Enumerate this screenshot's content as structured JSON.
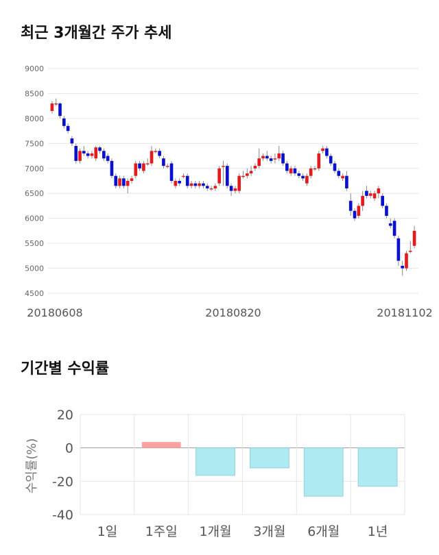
{
  "sections": {
    "price_title": "최근 3개월간 주가 추세",
    "return_title": "기간별 수익률"
  },
  "chart_data": [
    {
      "type": "candlestick",
      "title": "최근 3개월간 주가 추세",
      "ylim": [
        4500,
        9000
      ],
      "y_ticks": [
        9000,
        8500,
        8000,
        7500,
        7000,
        6500,
        6000,
        5500,
        5000,
        4500
      ],
      "x_tick_labels": [
        "20180608",
        "20180820",
        "20181102"
      ],
      "colors": {
        "up": "#e41a1c",
        "down": "#0a10d0",
        "grid": "#e6e6e6"
      },
      "grid": true,
      "candles": [
        [
          8150,
          8300,
          8350,
          8100
        ],
        [
          8300,
          8300,
          8400,
          8250
        ],
        [
          8300,
          8050,
          8320,
          8000
        ],
        [
          8000,
          7850,
          8050,
          7800
        ],
        [
          7850,
          7750,
          7900,
          7700
        ],
        [
          7600,
          7500,
          7650,
          7450
        ],
        [
          7450,
          7150,
          7500,
          7100
        ],
        [
          7150,
          7350,
          7400,
          7100
        ],
        [
          7350,
          7300,
          7450,
          7250
        ],
        [
          7300,
          7250,
          7350,
          7200
        ],
        [
          7250,
          7300,
          7350,
          7200
        ],
        [
          7200,
          7420,
          7450,
          7150
        ],
        [
          7420,
          7350,
          7450,
          7300
        ],
        [
          7350,
          7200,
          7400,
          7150
        ],
        [
          7250,
          7150,
          7300,
          7100
        ],
        [
          7150,
          6850,
          7200,
          6800
        ],
        [
          6850,
          6650,
          6900,
          6600
        ],
        [
          6650,
          6800,
          6850,
          6600
        ],
        [
          6800,
          6650,
          6850,
          6600
        ],
        [
          6650,
          6750,
          6800,
          6500
        ],
        [
          6750,
          6800,
          6850,
          6700
        ],
        [
          6850,
          7100,
          7150,
          6800
        ],
        [
          7100,
          7000,
          7150,
          6950
        ],
        [
          6950,
          7100,
          7150,
          6900
        ],
        [
          7100,
          7100,
          7200,
          7050
        ],
        [
          7100,
          7350,
          7450,
          7050
        ],
        [
          7350,
          7350,
          7400,
          7300
        ],
        [
          7350,
          7250,
          7400,
          7200
        ],
        [
          7200,
          7050,
          7250,
          7000
        ],
        [
          7050,
          7050,
          7100,
          7000
        ],
        [
          7100,
          6750,
          7150,
          6700
        ],
        [
          6650,
          6750,
          6800,
          6600
        ],
        [
          6750,
          6700,
          6800,
          6650
        ],
        [
          6850,
          6850,
          6900,
          6800
        ],
        [
          6850,
          6650,
          6900,
          6600
        ],
        [
          6650,
          6700,
          6750,
          6600
        ],
        [
          6700,
          6650,
          6750,
          6600
        ],
        [
          6650,
          6700,
          6750,
          6600
        ],
        [
          6700,
          6650,
          6750,
          6600
        ],
        [
          6650,
          6600,
          6700,
          6550
        ],
        [
          6600,
          6600,
          6650,
          6550
        ],
        [
          6600,
          6650,
          6700,
          6550
        ],
        [
          6700,
          7000,
          7050,
          6650
        ],
        [
          7050,
          7050,
          7150,
          6650
        ],
        [
          7050,
          6650,
          7100,
          6600
        ],
        [
          6650,
          6550,
          6700,
          6450
        ],
        [
          6550,
          6600,
          6650,
          6500
        ],
        [
          6550,
          6850,
          6900,
          6500
        ],
        [
          6850,
          6850,
          6950,
          6800
        ],
        [
          6850,
          6900,
          7000,
          6800
        ],
        [
          6900,
          6950,
          7050,
          6850
        ],
        [
          7000,
          7050,
          7100,
          6950
        ],
        [
          7050,
          7200,
          7400,
          7000
        ],
        [
          7200,
          7250,
          7300,
          7150
        ],
        [
          7250,
          7200,
          7350,
          7150
        ],
        [
          7200,
          7150,
          7250,
          7100
        ],
        [
          7200,
          7200,
          7300,
          7100
        ],
        [
          7200,
          7300,
          7450,
          7150
        ],
        [
          7300,
          7100,
          7350,
          7050
        ],
        [
          7100,
          6950,
          7150,
          6900
        ],
        [
          6900,
          7000,
          7050,
          6850
        ],
        [
          7000,
          6900,
          7050,
          6850
        ],
        [
          6900,
          6850,
          6950,
          6800
        ],
        [
          6850,
          6800,
          6900,
          6750
        ],
        [
          6700,
          6850,
          6900,
          6650
        ],
        [
          6850,
          7000,
          7050,
          6800
        ],
        [
          7000,
          7000,
          7050,
          6950
        ],
        [
          7000,
          7300,
          7350,
          6950
        ],
        [
          7350,
          7400,
          7450,
          7300
        ],
        [
          7400,
          7250,
          7450,
          7200
        ],
        [
          7250,
          7100,
          7300,
          7050
        ],
        [
          7100,
          6950,
          7150,
          6900
        ],
        [
          6950,
          6850,
          7000,
          6800
        ],
        [
          6800,
          6850,
          6900,
          6750
        ],
        [
          6850,
          6600,
          6950,
          6550
        ],
        [
          6350,
          6150,
          6500,
          6050
        ],
        [
          6150,
          6000,
          6200,
          5950
        ],
        [
          6050,
          6250,
          6300,
          6000
        ],
        [
          6250,
          6450,
          6550,
          6150
        ],
        [
          6550,
          6450,
          6650,
          6400
        ],
        [
          6450,
          6500,
          6550,
          6400
        ],
        [
          6400,
          6500,
          6550,
          6350
        ],
        [
          6500,
          6600,
          6650,
          6400
        ],
        [
          6450,
          6250,
          6500,
          6200
        ],
        [
          6250,
          6050,
          6300,
          6000
        ],
        [
          5900,
          5850,
          6000,
          5800
        ],
        [
          5950,
          5650,
          6000,
          5600
        ],
        [
          5600,
          5150,
          5650,
          5050
        ],
        [
          5050,
          5000,
          5150,
          4850
        ],
        [
          5000,
          5300,
          5350,
          4950
        ],
        [
          5350,
          5350,
          5550,
          5300
        ],
        [
          5450,
          5750,
          5850,
          5400
        ]
      ]
    },
    {
      "type": "bar",
      "title": "기간별 수익률",
      "categories": [
        "1일",
        "1주일",
        "1개월",
        "3개월",
        "6개월",
        "1년"
      ],
      "values": [
        0,
        3.5,
        -16.5,
        -12,
        -29,
        -23
      ],
      "ylabel": "수익률(%)",
      "ylim": [
        -40,
        20
      ],
      "y_ticks": [
        20,
        0,
        -20,
        -40
      ],
      "colors": {
        "positive": "#ffa0a0",
        "negative": "#aeeaf2",
        "negative_edge": "#93cfd8",
        "zero_line": "#999999"
      },
      "grid": true
    }
  ]
}
